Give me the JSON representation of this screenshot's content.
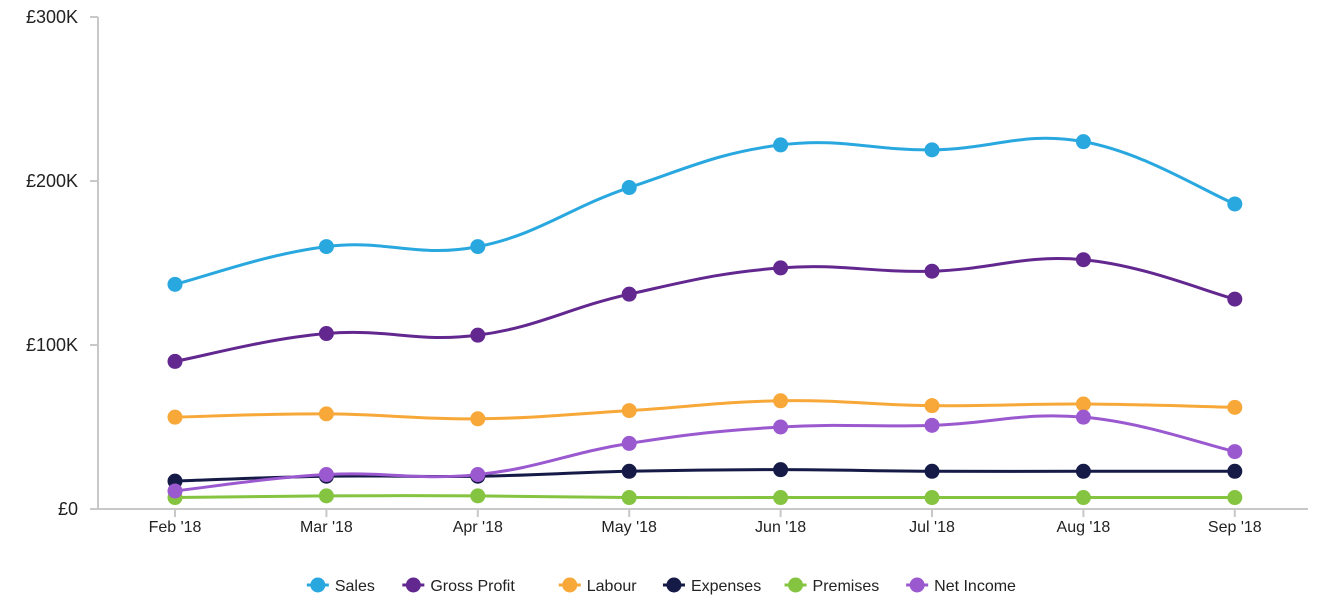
{
  "chart_data": {
    "type": "line",
    "categories": [
      "Feb '18",
      "Mar '18",
      "Apr '18",
      "May '18",
      "Jun '18",
      "Jul '18",
      "Aug '18",
      "Sep '18"
    ],
    "ylim": [
      0,
      300000
    ],
    "yticks": [
      {
        "value": 0,
        "label": "£0"
      },
      {
        "value": 100000,
        "label": "£100K"
      },
      {
        "value": 200000,
        "label": "£200K"
      },
      {
        "value": 300000,
        "label": "£300K"
      }
    ],
    "grid": false,
    "legend_position": "bottom-center",
    "series": [
      {
        "name": "Sales",
        "color": "#29a8e0",
        "values": [
          137000,
          160000,
          160000,
          196000,
          222000,
          219000,
          224000,
          186000
        ]
      },
      {
        "name": "Gross Profit",
        "color": "#63288f",
        "values": [
          90000,
          107000,
          106000,
          131000,
          147000,
          145000,
          152000,
          128000
        ]
      },
      {
        "name": "Labour",
        "color": "#f7a839",
        "values": [
          56000,
          58000,
          55000,
          60000,
          66000,
          63000,
          64000,
          62000
        ]
      },
      {
        "name": "Expenses",
        "color": "#151a46",
        "values": [
          17000,
          20000,
          20000,
          23000,
          24000,
          23000,
          23000,
          23000
        ]
      },
      {
        "name": "Premises",
        "color": "#85c440",
        "values": [
          7000,
          8000,
          8000,
          7000,
          7000,
          7000,
          7000,
          7000
        ]
      },
      {
        "name": "Net Income",
        "color": "#9b59d0",
        "values": [
          11000,
          21000,
          21000,
          40000,
          50000,
          51000,
          56000,
          35000
        ]
      }
    ]
  }
}
